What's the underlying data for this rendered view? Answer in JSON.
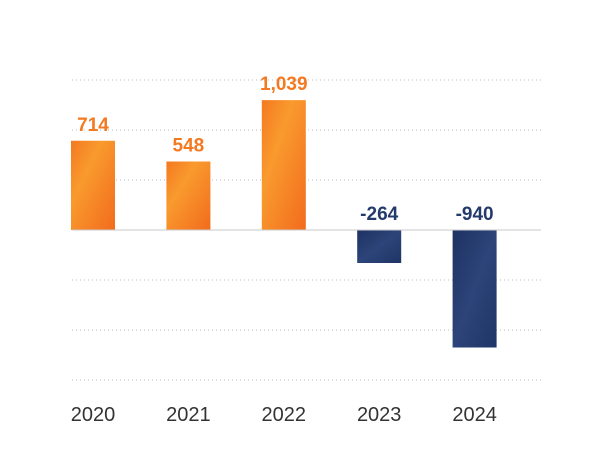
{
  "chart_data": {
    "type": "bar",
    "title": "",
    "xlabel": "",
    "ylabel": "",
    "categories": [
      "2020",
      "2021",
      "2022",
      "2023",
      "2024"
    ],
    "values": [
      714,
      548,
      1039,
      -264,
      -940
    ],
    "value_labels": [
      "714",
      "548",
      "1,039",
      "-264",
      "-940"
    ],
    "ylim": [
      -1200,
      1200
    ],
    "gridlines": [
      -1200,
      -800,
      -400,
      400,
      800,
      1200
    ],
    "grid": true,
    "legend": "none",
    "colors": {
      "positive": "#f47920",
      "positive_highlight": "#f99a2e",
      "negative": "#243a6b",
      "negative_highlight": "#35508a",
      "positive_label": "#f47920",
      "negative_label": "#243a6b",
      "zero_line": "#c8c8c8",
      "grid": "#bbbbbb"
    }
  }
}
